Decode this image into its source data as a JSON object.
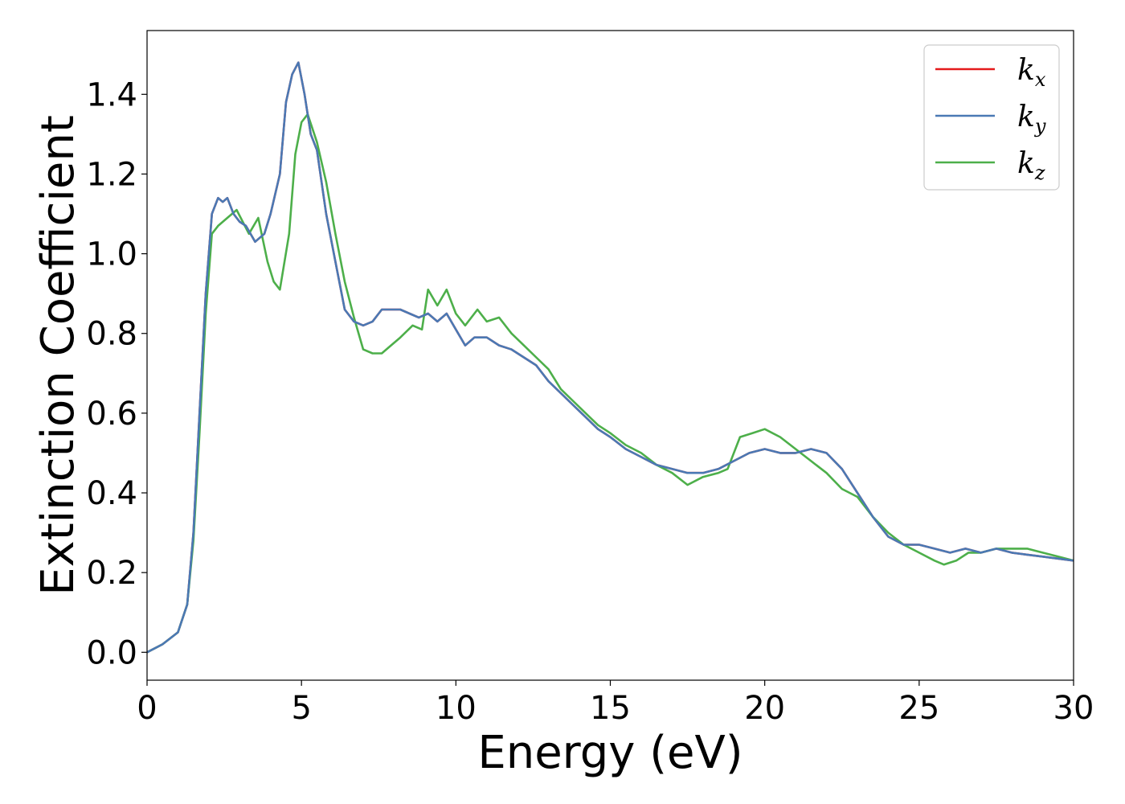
{
  "chart_data": {
    "type": "line",
    "xlabel": "Energy (eV)",
    "ylabel": "Extinction Coefficient",
    "xlim": [
      0,
      30
    ],
    "ylim": [
      -0.07,
      1.56
    ],
    "xticks": [
      0,
      5,
      10,
      15,
      20,
      25,
      30
    ],
    "yticks": [
      0.0,
      0.2,
      0.4,
      0.6,
      0.8,
      1.0,
      1.2,
      1.4
    ],
    "xtick_labels": [
      "0",
      "5",
      "10",
      "15",
      "20",
      "25",
      "30"
    ],
    "ytick_labels": [
      "0.0",
      "0.2",
      "0.4",
      "0.6",
      "0.8",
      "1.0",
      "1.2",
      "1.4"
    ],
    "grid": false,
    "legend_position": "top-right",
    "series": [
      {
        "name": "k",
        "subscript": "x",
        "color": "#e41a1c",
        "x": [
          0,
          0.5,
          1.0,
          1.3,
          1.5,
          1.7,
          1.9,
          2.1,
          2.3,
          2.45,
          2.6,
          2.8,
          3.0,
          3.2,
          3.5,
          3.8,
          4.0,
          4.3,
          4.5,
          4.7,
          4.9,
          5.1,
          5.3,
          5.5,
          5.8,
          6.1,
          6.4,
          6.7,
          7.0,
          7.3,
          7.6,
          7.9,
          8.2,
          8.5,
          8.8,
          9.1,
          9.4,
          9.7,
          10.0,
          10.3,
          10.6,
          11.0,
          11.4,
          11.8,
          12.2,
          12.6,
          13.0,
          13.4,
          13.8,
          14.2,
          14.6,
          15.0,
          15.5,
          16.0,
          16.5,
          17.0,
          17.5,
          18.0,
          18.5,
          19.0,
          19.5,
          20.0,
          20.5,
          21.0,
          21.5,
          22.0,
          22.5,
          23.0,
          23.5,
          24.0,
          24.5,
          25.0,
          25.5,
          26.0,
          26.5,
          27.0,
          27.5,
          28.0,
          28.5,
          29.0,
          29.5,
          30.0
        ],
        "y": [
          0.0,
          0.02,
          0.05,
          0.12,
          0.3,
          0.6,
          0.9,
          1.1,
          1.14,
          1.13,
          1.14,
          1.1,
          1.08,
          1.07,
          1.03,
          1.05,
          1.1,
          1.2,
          1.38,
          1.45,
          1.48,
          1.4,
          1.3,
          1.26,
          1.1,
          0.98,
          0.86,
          0.83,
          0.82,
          0.83,
          0.86,
          0.86,
          0.86,
          0.85,
          0.84,
          0.85,
          0.83,
          0.85,
          0.81,
          0.77,
          0.79,
          0.79,
          0.77,
          0.76,
          0.74,
          0.72,
          0.68,
          0.65,
          0.62,
          0.59,
          0.56,
          0.54,
          0.51,
          0.49,
          0.47,
          0.46,
          0.45,
          0.45,
          0.46,
          0.48,
          0.5,
          0.51,
          0.5,
          0.5,
          0.51,
          0.5,
          0.46,
          0.4,
          0.34,
          0.29,
          0.27,
          0.27,
          0.26,
          0.25,
          0.26,
          0.25,
          0.26,
          0.25,
          0.245,
          0.24,
          0.235,
          0.23
        ]
      },
      {
        "name": "k",
        "subscript": "y",
        "color": "#4a79b4",
        "x": [
          0,
          0.5,
          1.0,
          1.3,
          1.5,
          1.7,
          1.9,
          2.1,
          2.3,
          2.45,
          2.6,
          2.8,
          3.0,
          3.2,
          3.5,
          3.8,
          4.0,
          4.3,
          4.5,
          4.7,
          4.9,
          5.1,
          5.3,
          5.5,
          5.8,
          6.1,
          6.4,
          6.7,
          7.0,
          7.3,
          7.6,
          7.9,
          8.2,
          8.5,
          8.8,
          9.1,
          9.4,
          9.7,
          10.0,
          10.3,
          10.6,
          11.0,
          11.4,
          11.8,
          12.2,
          12.6,
          13.0,
          13.4,
          13.8,
          14.2,
          14.6,
          15.0,
          15.5,
          16.0,
          16.5,
          17.0,
          17.5,
          18.0,
          18.5,
          19.0,
          19.5,
          20.0,
          20.5,
          21.0,
          21.5,
          22.0,
          22.5,
          23.0,
          23.5,
          24.0,
          24.5,
          25.0,
          25.5,
          26.0,
          26.5,
          27.0,
          27.5,
          28.0,
          28.5,
          29.0,
          29.5,
          30.0
        ],
        "y": [
          0.0,
          0.02,
          0.05,
          0.12,
          0.3,
          0.6,
          0.9,
          1.1,
          1.14,
          1.13,
          1.14,
          1.1,
          1.08,
          1.07,
          1.03,
          1.05,
          1.1,
          1.2,
          1.38,
          1.45,
          1.48,
          1.4,
          1.3,
          1.26,
          1.1,
          0.98,
          0.86,
          0.83,
          0.82,
          0.83,
          0.86,
          0.86,
          0.86,
          0.85,
          0.84,
          0.85,
          0.83,
          0.85,
          0.81,
          0.77,
          0.79,
          0.79,
          0.77,
          0.76,
          0.74,
          0.72,
          0.68,
          0.65,
          0.62,
          0.59,
          0.56,
          0.54,
          0.51,
          0.49,
          0.47,
          0.46,
          0.45,
          0.45,
          0.46,
          0.48,
          0.5,
          0.51,
          0.5,
          0.5,
          0.51,
          0.5,
          0.46,
          0.4,
          0.34,
          0.29,
          0.27,
          0.27,
          0.26,
          0.25,
          0.26,
          0.25,
          0.26,
          0.25,
          0.245,
          0.24,
          0.235,
          0.23
        ]
      },
      {
        "name": "k",
        "subscript": "z",
        "color": "#4daf4a",
        "x": [
          0,
          0.5,
          1.0,
          1.3,
          1.5,
          1.7,
          1.9,
          2.1,
          2.3,
          2.6,
          2.9,
          3.1,
          3.3,
          3.6,
          3.9,
          4.1,
          4.3,
          4.6,
          4.8,
          5.0,
          5.2,
          5.5,
          5.8,
          6.1,
          6.4,
          6.7,
          7.0,
          7.3,
          7.6,
          7.9,
          8.2,
          8.6,
          8.9,
          9.1,
          9.4,
          9.7,
          10.0,
          10.3,
          10.7,
          11.0,
          11.4,
          11.8,
          12.2,
          12.6,
          13.0,
          13.4,
          13.8,
          14.2,
          14.6,
          15.0,
          15.5,
          16.0,
          16.5,
          17.0,
          17.5,
          18.0,
          18.5,
          18.8,
          19.2,
          19.6,
          20.0,
          20.5,
          21.0,
          21.5,
          22.0,
          22.5,
          23.0,
          23.5,
          24.0,
          24.5,
          25.0,
          25.5,
          25.8,
          26.2,
          26.6,
          27.0,
          27.5,
          28.0,
          28.5,
          29.0,
          29.5,
          30.0
        ],
        "y": [
          0.0,
          0.02,
          0.05,
          0.12,
          0.28,
          0.55,
          0.85,
          1.05,
          1.07,
          1.09,
          1.11,
          1.08,
          1.05,
          1.09,
          0.98,
          0.93,
          0.91,
          1.05,
          1.25,
          1.33,
          1.35,
          1.28,
          1.18,
          1.05,
          0.93,
          0.84,
          0.76,
          0.75,
          0.75,
          0.77,
          0.79,
          0.82,
          0.81,
          0.91,
          0.87,
          0.91,
          0.85,
          0.82,
          0.86,
          0.83,
          0.84,
          0.8,
          0.77,
          0.74,
          0.71,
          0.66,
          0.63,
          0.6,
          0.57,
          0.55,
          0.52,
          0.5,
          0.47,
          0.45,
          0.42,
          0.44,
          0.45,
          0.46,
          0.54,
          0.55,
          0.56,
          0.54,
          0.51,
          0.48,
          0.45,
          0.41,
          0.39,
          0.34,
          0.3,
          0.27,
          0.25,
          0.23,
          0.22,
          0.23,
          0.25,
          0.25,
          0.26,
          0.26,
          0.26,
          0.25,
          0.24,
          0.23
        ]
      }
    ]
  }
}
